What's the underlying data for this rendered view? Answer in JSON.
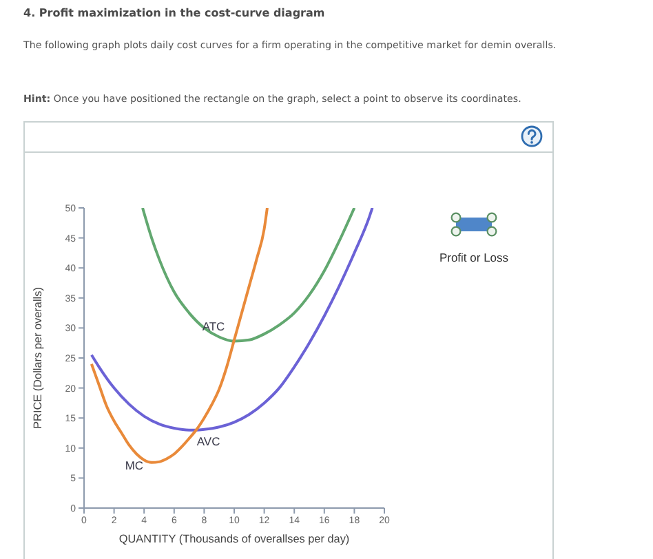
{
  "chart_data": {
    "type": "line",
    "title": "4. Profit maximization in the cost-curve diagram",
    "subtitle": "The following graph plots daily cost curves for a firm operating in the competitive market for demin overalls.",
    "annotations": [
      "Hint: Once you have positioned the rectangle on the graph, select a point to observe its coordinates.",
      "Profit or Loss"
    ],
    "xlabel": "QUANTITY (Thousands of overallses per day)",
    "ylabel": "PRICE (Dollars per overalls)",
    "xlim": [
      0,
      20
    ],
    "xticks": [
      0,
      2,
      4,
      6,
      8,
      10,
      12,
      14,
      16,
      18,
      20
    ],
    "ylim": [
      0,
      50
    ],
    "yticks": [
      0,
      5,
      10,
      15,
      20,
      25,
      30,
      35,
      40,
      45,
      50
    ],
    "series": [
      {
        "name": "ATC",
        "color": "#62a870",
        "x": [
          3.9,
          4.5,
          5,
          5.5,
          6,
          7,
          8,
          9,
          10,
          11,
          12,
          13,
          14,
          15,
          16,
          17,
          18
        ],
        "values": [
          50,
          45,
          41.5,
          38.5,
          36,
          32.5,
          30,
          28.5,
          27.8,
          28,
          29,
          30.5,
          32.5,
          35.5,
          39.5,
          44.5,
          50
        ]
      },
      {
        "name": "AVC",
        "color": "#6b62d6",
        "x": [
          0.5,
          1,
          2,
          3,
          4,
          5,
          6,
          7,
          7.5,
          8,
          9,
          10,
          11,
          12,
          13,
          14,
          15,
          16,
          17,
          18,
          19,
          19.2
        ],
        "values": [
          25.5,
          23.5,
          20,
          17.3,
          15.3,
          14,
          13.3,
          13,
          13,
          13.1,
          13.5,
          14.3,
          15.6,
          17.5,
          20,
          23.5,
          27.5,
          32,
          37,
          42.5,
          48.5,
          50
        ]
      },
      {
        "name": "MC",
        "color": "#e98a3a",
        "x": [
          0.5,
          1,
          1.5,
          2,
          2.5,
          3,
          3.5,
          4,
          4.5,
          5,
          5.5,
          6,
          6.5,
          7,
          7.5,
          8,
          8.5,
          9,
          9.5,
          10,
          10.5,
          11,
          11.5,
          12,
          12.2
        ],
        "values": [
          24,
          20.5,
          17,
          14.5,
          12.5,
          10.5,
          9,
          8,
          7.6,
          7.7,
          8.2,
          9,
          10.2,
          11.6,
          13.1,
          15,
          17.2,
          19.8,
          23.5,
          28,
          32.5,
          37,
          41.5,
          46.5,
          50
        ]
      }
    ]
  }
}
